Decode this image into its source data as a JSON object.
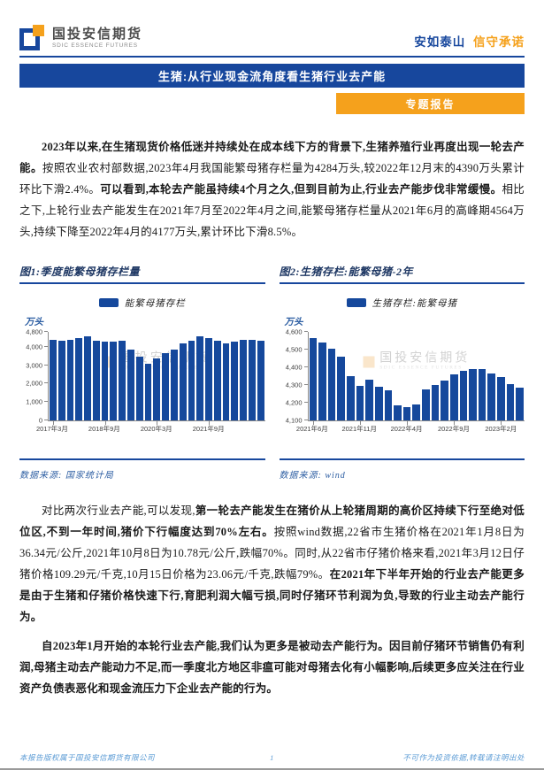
{
  "page": {
    "brand_cn": "国投安信期货",
    "brand_en": "SDIC ESSENCE FUTURES",
    "slogan_blue": "安如泰山",
    "slogan_orange": "信守承诺",
    "report_title": "生猪:从行业现金流角度看生猪行业去产能",
    "badge": "专题报告",
    "watermark_text": "国投安信期货",
    "watermark_subtext": "SDIC ESSENCE FUTURES"
  },
  "colors": {
    "accent_blue": "#17479D",
    "accent_orange": "#F5A11C",
    "bar_blue": "#15489C",
    "chart_title_navy": "#1F3864",
    "source_blue": "#2E5FA3",
    "footer_blue": "#5B9BD5"
  },
  "paragraphs": [
    {
      "segments": [
        {
          "bold": true,
          "text": "2023年以来,在生猪现货价格低迷并持续处在成本线下方的背景下,生猪养殖行业再度出现一轮去产能。"
        },
        {
          "bold": false,
          "text": "按照农业农村部数据,2023年4月我国能繁母猪存栏量为4284万头,较2022年12月末的4390万头累计环比下滑2.4%。"
        },
        {
          "bold": true,
          "text": "可以看到,本轮去产能虽持续4个月之久,但到目前为止,行业去产能步伐非常缓慢。"
        },
        {
          "bold": false,
          "text": "相比之下,上轮行业去产能发生在2021年7月至2022年4月之间,能繁母猪存栏量从2021年6月的高峰期4564万头,持续下降至2022年4月的4177万头,累计环比下滑8.5%。"
        }
      ]
    },
    {
      "segments": [
        {
          "bold": false,
          "text": "对比两次行业去产能,可以发现,"
        },
        {
          "bold": true,
          "text": "第一轮去产能发生在猪价从上轮猪周期的高价区持续下行至绝对低位区,不到一年时间,猪价下行幅度达到70%左右。"
        },
        {
          "bold": false,
          "text": "按照wind数据,22省市生猪价格在2021年1月8日为36.34元/公斤,2021年10月8日为10.78元/公斤,跌幅70%。同时,从22省市仔猪价格来看,2021年3月12日仔猪价格109.29元/千克,10月15日价格为23.06元/千克,跌幅79%。"
        },
        {
          "bold": true,
          "text": "在2021年下半年开始的行业去产能更多是由于生猪和仔猪价格快速下行,育肥利润大幅亏损,同时仔猪环节利润为负,导致的行业主动去产能行为。"
        }
      ]
    },
    {
      "segments": [
        {
          "bold": true,
          "text": "自2023年1月开始的本轮行业去产能,我们认为更多是被动去产能行为。因目前仔猪环节销售仍有利润,母猪主动去产能动力不足,而一季度北方地区非瘟可能对母猪去化有小幅影响,后续更多应关注在行业资产负债表恶化和现金流压力下企业去产能的行为。"
        }
      ]
    }
  ],
  "chart_data": [
    {
      "type": "bar",
      "title": "图1:季度能繁母猪存栏量",
      "legend": "能繁母猪存栏",
      "unit_label": "万头",
      "ylabel": "万头",
      "ylim": [
        0,
        4800
      ],
      "yticks": [
        0,
        1000,
        2000,
        3000,
        4000,
        4800
      ],
      "grid": false,
      "legend_position": "top-center",
      "categories": [
        "2017年3月",
        "2017年6月",
        "2017年9月",
        "2017年12月",
        "2018年3月",
        "2018年6月",
        "2018年9月",
        "2018年12月",
        "2019年3月",
        "2019年6月",
        "2019年9月",
        "2019年12月",
        "2020年3月",
        "2020年6月",
        "2020年9月",
        "2020年12月",
        "2021年3月",
        "2021年6月",
        "2021年9月",
        "2021年12月",
        "2022年3月",
        "2022年6月",
        "2022年9月",
        "2022年12月",
        "2023年3月"
      ],
      "values": [
        4350,
        4330,
        4360,
        4470,
        4560,
        4330,
        4250,
        4270,
        4310,
        3850,
        3450,
        3080,
        3381,
        3629,
        3822,
        4161,
        4318,
        4564,
        4459,
        4329,
        4185,
        4277,
        4362,
        4390,
        4305
      ],
      "xtick_indices": [
        0,
        6,
        12,
        18
      ],
      "xtick_labels": [
        "2017年3月",
        "2018年9月",
        "2020年3月",
        "2021年9月"
      ],
      "source": "数据来源: 国家统计局"
    },
    {
      "type": "bar",
      "title": "图2:生猪存栏:能繁母猪-2年",
      "legend": "生猪存栏:能繁母猪",
      "unit_label": "万头",
      "ylabel": "万头",
      "ylim": [
        4100,
        4600
      ],
      "yticks": [
        4100,
        4200,
        4300,
        4400,
        4500,
        4600
      ],
      "grid": false,
      "legend_position": "top-center",
      "categories": [
        "2021年6月",
        "2021年7月",
        "2021年8月",
        "2021年9月",
        "2021年10月",
        "2021年11月",
        "2021年12月",
        "2022年1月",
        "2022年2月",
        "2022年3月",
        "2022年4月",
        "2022年5月",
        "2022年6月",
        "2022年7月",
        "2022年8月",
        "2022年9月",
        "2022年10月",
        "2022年11月",
        "2022年12月",
        "2023年1月",
        "2023年2月",
        "2023年3月",
        "2023年4月"
      ],
      "values": [
        4564,
        4542,
        4503,
        4459,
        4348,
        4296,
        4329,
        4290,
        4268,
        4185,
        4177,
        4192,
        4277,
        4298,
        4324,
        4362,
        4379,
        4388,
        4390,
        4367,
        4343,
        4305,
        4284
      ],
      "xtick_indices": [
        0,
        5,
        10,
        15,
        20
      ],
      "xtick_labels": [
        "2021年6月",
        "2021年11月",
        "2022年4月",
        "2022年9月",
        "2023年2月"
      ],
      "source": "数据来源: wind"
    }
  ],
  "footer": {
    "left": "本报告版权属于国投安信期货有限公司",
    "page_number": "1",
    "right": "不可作为投资依据,转载请注明出处"
  }
}
